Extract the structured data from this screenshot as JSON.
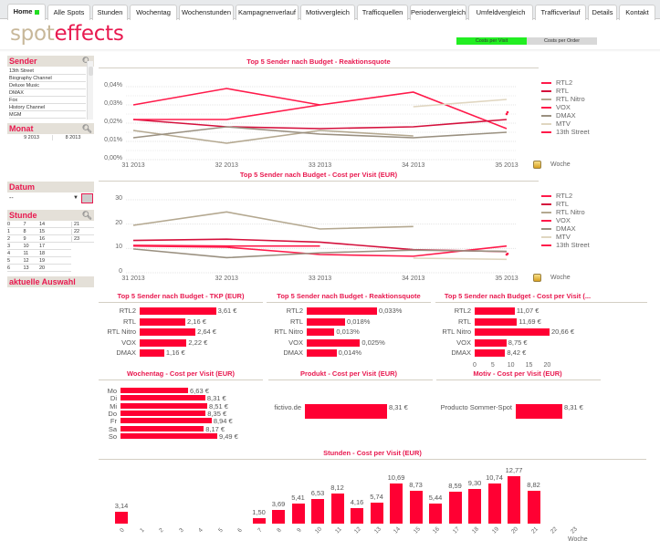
{
  "tabs": [
    {
      "label": "Home",
      "active": true
    },
    {
      "label": "Alle Spots"
    },
    {
      "label": "Stunden"
    },
    {
      "label": "Wochentag"
    },
    {
      "label": "Wochenstunden"
    },
    {
      "label": "Kampagnenverlauf"
    },
    {
      "label": "Motivvergleich"
    },
    {
      "label": "Trafficquellen"
    },
    {
      "label": "Periodenvergleich"
    },
    {
      "label": "Umfeldvergleich"
    },
    {
      "label": "Trafficverlauf"
    },
    {
      "label": "Details"
    },
    {
      "label": "Kontakt"
    }
  ],
  "logo": {
    "part1": "spot",
    "part2": "effects"
  },
  "toggle": {
    "active": "Costs per Visit",
    "inactive": "Costs per Order"
  },
  "sidebar": {
    "sender": {
      "title": "Sender",
      "items": [
        "13th Street",
        "Biography Channel",
        "Deluxe Music",
        "DMAX",
        "Fox",
        "History Channel",
        "MGM"
      ]
    },
    "monat": {
      "title": "Monat",
      "items": [
        "9 2013",
        "8 2013"
      ]
    },
    "datum": {
      "title": "Datum",
      "value": "--"
    },
    "stunde": {
      "title": "Stunde",
      "rows": [
        [
          "0",
          "7",
          "14",
          "21"
        ],
        [
          "1",
          "8",
          "15",
          "22"
        ],
        [
          "2",
          "9",
          "16",
          "23"
        ],
        [
          "3",
          "10",
          "17",
          ""
        ],
        [
          "4",
          "11",
          "18",
          ""
        ],
        [
          "5",
          "12",
          "19",
          ""
        ],
        [
          "6",
          "13",
          "20",
          ""
        ]
      ]
    },
    "auswahl": {
      "title": "aktuelle Auswahl"
    }
  },
  "colors": {
    "accent": "#e8194f",
    "bar": "#ff0033",
    "tan": "#b4a890",
    "beige": "#e0d6c0",
    "darkred": "#d4103c"
  },
  "chart_data": [
    {
      "type": "line",
      "title": "Top 5 Sender nach Budget - Reaktionsquote",
      "xlabel": "Woche",
      "ylabel": "",
      "categories": [
        "31 2013",
        "32 2013",
        "33 2013",
        "34 2013",
        "35 2013"
      ],
      "yticks": [
        "0,00%",
        "0,01%",
        "0,02%",
        "0,03%",
        "0,04%"
      ],
      "ylim": [
        0,
        0.04
      ],
      "grid": true,
      "legend": "right",
      "series": [
        {
          "name": "RTL2",
          "color": "#ff1a4a",
          "values": [
            0.03,
            0.039,
            0.03,
            0.037,
            0.017
          ]
        },
        {
          "name": "RTL",
          "color": "#d4103c",
          "values": [
            0.022,
            0.018,
            0.017,
            0.018,
            0.022
          ]
        },
        {
          "name": "RTL Nitro",
          "color": "#b4a890",
          "values": [
            0.016,
            0.009,
            0.016,
            0.013,
            null
          ]
        },
        {
          "name": "VOX",
          "color": "#ff1a4a",
          "values": [
            0.022,
            0.022,
            0.03,
            null,
            0.025
          ]
        },
        {
          "name": "DMAX",
          "color": "#9a9080",
          "values": [
            0.012,
            0.018,
            0.014,
            0.012,
            0.015
          ]
        },
        {
          "name": "MTV",
          "color": "#e0d6c0",
          "values": [
            null,
            null,
            null,
            0.029,
            0.033
          ]
        },
        {
          "name": "13th Street",
          "color": "#ff1a4a",
          "values": [
            null,
            null,
            null,
            null,
            null
          ]
        }
      ]
    },
    {
      "type": "line",
      "title": "Top 5 Sender nach Budget - Cost per Visit (EUR)",
      "xlabel": "Woche",
      "ylabel": "",
      "categories": [
        "31 2013",
        "32 2013",
        "33 2013",
        "34 2013",
        "35 2013"
      ],
      "yticks": [
        "0",
        "10",
        "20",
        "30"
      ],
      "ylim": [
        0,
        30
      ],
      "grid": true,
      "legend": "right",
      "series": [
        {
          "name": "RTL2",
          "color": "#ff1a4a",
          "values": [
            11,
            10.5,
            7.5,
            6.8,
            11
          ]
        },
        {
          "name": "RTL",
          "color": "#d4103c",
          "values": [
            13.3,
            13.8,
            12.6,
            9.5,
            8.7
          ]
        },
        {
          "name": "RTL Nitro",
          "color": "#b4a890",
          "values": [
            19.5,
            25,
            18,
            19,
            null
          ]
        },
        {
          "name": "VOX",
          "color": "#ff1a4a",
          "values": [
            11.3,
            11,
            11,
            null,
            7.5
          ]
        },
        {
          "name": "DMAX",
          "color": "#9a9080",
          "values": [
            9.8,
            6.2,
            8.2,
            9.3,
            8.8
          ]
        },
        {
          "name": "MTV",
          "color": "#e0d6c0",
          "values": [
            null,
            null,
            null,
            6,
            5.5
          ]
        },
        {
          "name": "13th Street",
          "color": "#ff1a4a",
          "values": [
            null,
            null,
            null,
            null,
            null
          ]
        }
      ]
    },
    {
      "type": "bar",
      "orientation": "horizontal",
      "title": "Top 5 Sender nach Budget - TKP (EUR)",
      "categories": [
        "RTL2",
        "RTL",
        "RTL Nitro",
        "VOX",
        "DMAX"
      ],
      "values": [
        3.61,
        2.16,
        2.64,
        2.22,
        1.16
      ],
      "labels": [
        "3,61 €",
        "2,16 €",
        "2,64 €",
        "2,22 €",
        "1,16 €"
      ],
      "xlim": [
        0,
        3.8
      ]
    },
    {
      "type": "bar",
      "orientation": "horizontal",
      "title": "Top 5 Sender nach Budget - Reaktionsquote",
      "categories": [
        "RTL2",
        "RTL",
        "RTL Nitro",
        "VOX",
        "DMAX"
      ],
      "values": [
        0.033,
        0.018,
        0.013,
        0.025,
        0.014
      ],
      "labels": [
        "0,033%",
        "0,018%",
        "0,013%",
        "0,025%",
        "0,014%"
      ],
      "xlim": [
        0,
        0.036
      ]
    },
    {
      "type": "bar",
      "orientation": "horizontal",
      "title": "Top 5 Sender nach Budget - Cost per Visit (...",
      "categories": [
        "RTL2",
        "RTL",
        "RTL Nitro",
        "VOX",
        "DMAX"
      ],
      "values": [
        11.07,
        11.69,
        20.66,
        8.75,
        8.42
      ],
      "labels": [
        "11,07 €",
        "11,69 €",
        "20,66 €",
        "8,75 €",
        "8,42 €"
      ],
      "xticks": [
        "0",
        "5",
        "10",
        "15",
        "20"
      ],
      "xlim": [
        0,
        20.66
      ]
    },
    {
      "type": "bar",
      "orientation": "horizontal",
      "title": "Wochentag - Cost per Visit (EUR)",
      "categories": [
        "Mo",
        "Di",
        "Mi",
        "Do",
        "Fr",
        "Sa",
        "So"
      ],
      "values": [
        6.63,
        8.31,
        8.51,
        8.35,
        8.94,
        8.17,
        9.49
      ],
      "labels": [
        "6,63 €",
        "8,31 €",
        "8,51 €",
        "8,35 €",
        "8,94 €",
        "8,17 €",
        "9,49 €"
      ],
      "xlim": [
        0,
        9.49
      ]
    },
    {
      "type": "bar",
      "orientation": "horizontal",
      "title": "Produkt - Cost per Visit (EUR)",
      "categories": [
        "fictivo.de"
      ],
      "values": [
        8.31
      ],
      "labels": [
        "8,31 €"
      ],
      "xlim": [
        0,
        8.31
      ]
    },
    {
      "type": "bar",
      "orientation": "horizontal",
      "title": "Motiv - Cost per Visit (EUR)",
      "categories": [
        "Producto Sommer-Spot"
      ],
      "values": [
        8.31
      ],
      "labels": [
        "8,31 €"
      ],
      "xlim": [
        0,
        8.31
      ]
    },
    {
      "type": "bar",
      "orientation": "vertical",
      "title": "Stunden - Cost per Visit (EUR)",
      "xlabel": "Woche",
      "categories": [
        "0",
        "1",
        "2",
        "3",
        "4",
        "5",
        "6",
        "7",
        "8",
        "9",
        "10",
        "11",
        "12",
        "13",
        "14",
        "15",
        "16",
        "17",
        "18",
        "19",
        "20",
        "21",
        "22",
        "23"
      ],
      "values": [
        3.14,
        null,
        null,
        null,
        null,
        null,
        null,
        1.5,
        3.69,
        5.41,
        6.53,
        8.12,
        4.16,
        5.74,
        10.69,
        8.73,
        5.44,
        8.59,
        9.3,
        10.74,
        12.77,
        8.82,
        null,
        null
      ],
      "labels": [
        "3,14",
        "",
        "",
        "",
        "",
        "",
        "",
        "1,50",
        "3,69",
        "5,41",
        "6,53",
        "8,12",
        "4,16",
        "5,74",
        "10,69",
        "8,73",
        "5,44",
        "8,59",
        "9,30",
        "10,74",
        "12,77",
        "8,82",
        "",
        ""
      ],
      "ylim": [
        0,
        12.77
      ]
    }
  ]
}
